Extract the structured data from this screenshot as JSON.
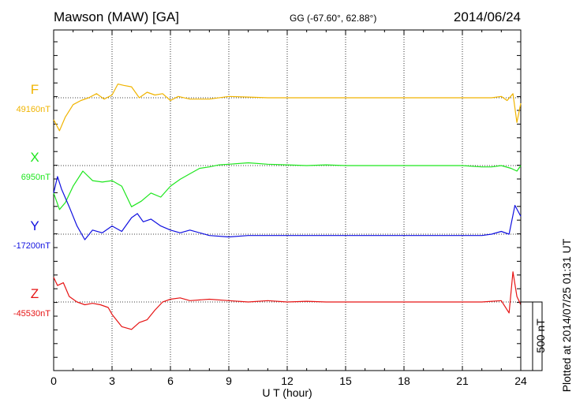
{
  "header": {
    "station": "Mawson (MAW)  [GA]",
    "coords": "GG (-67.60°,  62.88°)",
    "date": "2014/06/24"
  },
  "footer": {
    "plotted": "Plotted at 2014/07/25 01:31  UT"
  },
  "chart_data": {
    "type": "line",
    "title": "Mawson (MAW)  [GA]",
    "xlabel": "U T (hour)",
    "ylabel": "",
    "xlim": [
      0,
      24
    ],
    "x_ticks": [
      0,
      3,
      6,
      9,
      12,
      15,
      18,
      21,
      24
    ],
    "x_tick_labels": [
      "0",
      "3",
      "6",
      "9",
      "12",
      "15",
      "18",
      "21",
      "24"
    ],
    "grid": true,
    "scale_bar": {
      "label": "500 nT",
      "value_nT": 500
    },
    "series": [
      {
        "name": "F",
        "baseline_label": "49160nT",
        "baseline_nT": 49160,
        "color": "#f0b400",
        "x": [
          0,
          0.3,
          0.6,
          1.0,
          1.4,
          1.8,
          2.2,
          2.6,
          3.0,
          3.3,
          3.6,
          4.0,
          4.4,
          4.8,
          5.2,
          5.6,
          6.0,
          6.4,
          7.0,
          8.0,
          9.0,
          10.0,
          11.0,
          12.0,
          13.0,
          14.0,
          15.0,
          16.0,
          17.0,
          18.0,
          19.0,
          20.0,
          21.0,
          22.0,
          22.5,
          23.0,
          23.3,
          23.6,
          23.8,
          24.0
        ],
        "values": [
          -160,
          -240,
          -140,
          -50,
          -20,
          0,
          30,
          -10,
          20,
          100,
          90,
          80,
          0,
          40,
          20,
          30,
          -20,
          10,
          -10,
          -10,
          10,
          5,
          0,
          0,
          0,
          0,
          0,
          0,
          0,
          0,
          0,
          0,
          0,
          0,
          0,
          10,
          -20,
          30,
          -180,
          -40
        ]
      },
      {
        "name": "X",
        "baseline_label": "6950nT",
        "baseline_nT": 6950,
        "color": "#1ee61e",
        "x": [
          0,
          0.3,
          0.6,
          1.0,
          1.5,
          2.0,
          2.5,
          3.0,
          3.5,
          4.0,
          4.5,
          5.0,
          5.5,
          6.0,
          6.5,
          7.0,
          7.5,
          8.0,
          8.5,
          9.0,
          10.0,
          11.0,
          12.0,
          13.0,
          14.0,
          15.0,
          16.0,
          17.0,
          18.0,
          19.0,
          20.0,
          21.0,
          22.0,
          22.5,
          23.0,
          23.5,
          23.8,
          24.0
        ],
        "values": [
          -200,
          -320,
          -270,
          -150,
          -40,
          -110,
          -120,
          -110,
          -150,
          -300,
          -260,
          -200,
          -230,
          -150,
          -100,
          -60,
          -20,
          -10,
          5,
          10,
          20,
          10,
          5,
          0,
          5,
          0,
          0,
          0,
          0,
          0,
          0,
          0,
          -10,
          -10,
          0,
          -20,
          -40,
          0
        ]
      },
      {
        "name": "Y",
        "baseline_label": "-17200nT",
        "baseline_nT": -17200,
        "color": "#1010e0",
        "x": [
          0,
          0.2,
          0.4,
          0.8,
          1.2,
          1.6,
          2.0,
          2.5,
          3.0,
          3.5,
          4.0,
          4.3,
          4.6,
          5.0,
          5.5,
          6.0,
          6.5,
          7.0,
          8.0,
          9.0,
          10.0,
          11.0,
          12.0,
          13.0,
          14.0,
          15.0,
          16.0,
          17.0,
          18.0,
          19.0,
          20.0,
          21.0,
          22.0,
          22.5,
          23.0,
          23.4,
          23.7,
          24.0
        ],
        "values": [
          300,
          420,
          330,
          200,
          60,
          -40,
          30,
          10,
          60,
          20,
          120,
          150,
          90,
          110,
          60,
          30,
          10,
          30,
          -10,
          -20,
          -10,
          -10,
          -10,
          -10,
          -10,
          -10,
          -10,
          -10,
          -10,
          -10,
          -10,
          -10,
          -10,
          0,
          20,
          0,
          210,
          130
        ]
      },
      {
        "name": "Z",
        "baseline_label": "-45530nT",
        "baseline_nT": -45530,
        "color": "#e61414",
        "x": [
          0,
          0.2,
          0.5,
          0.8,
          1.2,
          1.6,
          2.0,
          2.4,
          2.8,
          3.0,
          3.5,
          4.0,
          4.4,
          4.8,
          5.2,
          5.6,
          6.0,
          6.5,
          7.0,
          8.0,
          9.0,
          10.0,
          11.0,
          12.0,
          13.0,
          14.0,
          15.0,
          16.0,
          17.0,
          18.0,
          19.0,
          20.0,
          21.0,
          22.0,
          23.0,
          23.4,
          23.6,
          23.8,
          24.0
        ],
        "values": [
          180,
          120,
          140,
          40,
          0,
          -20,
          -10,
          -20,
          -40,
          -90,
          -180,
          -200,
          -150,
          -130,
          -60,
          0,
          20,
          30,
          10,
          20,
          10,
          0,
          10,
          0,
          5,
          0,
          0,
          0,
          0,
          0,
          0,
          0,
          0,
          0,
          10,
          -80,
          220,
          40,
          -20
        ]
      }
    ]
  }
}
